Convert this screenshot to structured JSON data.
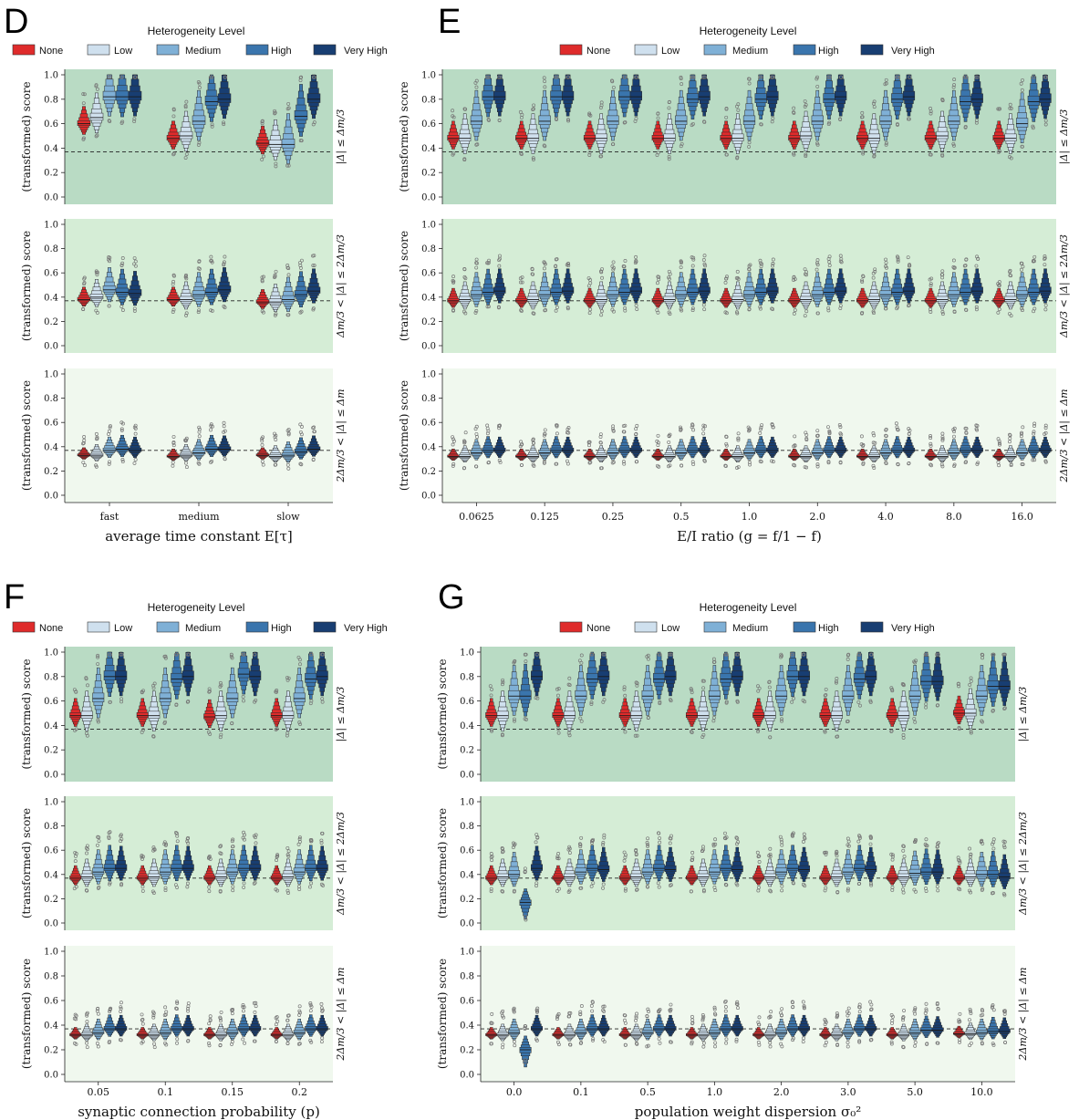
{
  "figure": {
    "legend_title": "Heterogeneity Level",
    "levels": [
      "None",
      "Low",
      "Medium",
      "High",
      "Very High"
    ],
    "colors": {
      "None": "#df2b2b",
      "Low": "#cfe0ee",
      "Medium": "#7fb0d6",
      "High": "#3a75ad",
      "Very High": "#183e72"
    },
    "y_label": "(transformed) score",
    "row_labels": [
      "|Δ| ≤ Δm/3",
      "Δm/3 < |Δ| ≤ 2Δm/3",
      "2Δm/3 < |Δ| ≤ Δm"
    ],
    "row_backgrounds": [
      "#b9dbc4",
      "#d5edd6",
      "#f0f8ee"
    ],
    "y_ticks": [
      "0.0",
      "0.2",
      "0.4",
      "0.6",
      "0.8",
      "1.0"
    ],
    "ylim": [
      0.0,
      1.0
    ],
    "reference_line": 0.37
  },
  "chart_data": [
    {
      "panel": "D",
      "type": "boxen",
      "xlabel": "average time constant E[τ]",
      "categories": [
        "fast",
        "medium",
        "slow"
      ],
      "medians": [
        [
          [
            0.6,
            0.65,
            0.82,
            0.82,
            0.82
          ],
          [
            0.48,
            0.5,
            0.62,
            0.78,
            0.8
          ],
          [
            0.44,
            0.43,
            0.43,
            0.66,
            0.8
          ]
        ],
        [
          [
            0.38,
            0.4,
            0.46,
            0.44,
            0.43
          ],
          [
            0.38,
            0.38,
            0.42,
            0.44,
            0.46
          ],
          [
            0.36,
            0.36,
            0.38,
            0.42,
            0.45
          ]
        ],
        [
          [
            0.33,
            0.33,
            0.37,
            0.38,
            0.37
          ],
          [
            0.32,
            0.33,
            0.35,
            0.38,
            0.38
          ],
          [
            0.33,
            0.32,
            0.33,
            0.36,
            0.38
          ]
        ]
      ]
    },
    {
      "panel": "E",
      "type": "boxen",
      "xlabel": "E/I ratio (g = f/1 − f)",
      "categories": [
        "0.0625",
        "0.125",
        "0.25",
        "0.5",
        "1.0",
        "2.0",
        "4.0",
        "8.0",
        "16.0"
      ],
      "medians": [
        [
          [
            0.48,
            0.48,
            0.62,
            0.82,
            0.82
          ],
          [
            0.48,
            0.48,
            0.62,
            0.82,
            0.82
          ],
          [
            0.48,
            0.48,
            0.62,
            0.82,
            0.82
          ],
          [
            0.48,
            0.48,
            0.62,
            0.8,
            0.82
          ],
          [
            0.48,
            0.48,
            0.62,
            0.8,
            0.82
          ],
          [
            0.48,
            0.5,
            0.62,
            0.8,
            0.82
          ],
          [
            0.48,
            0.48,
            0.62,
            0.8,
            0.82
          ],
          [
            0.48,
            0.5,
            0.62,
            0.78,
            0.8
          ],
          [
            0.48,
            0.48,
            0.6,
            0.78,
            0.8
          ]
        ],
        [
          [
            0.37,
            0.38,
            0.42,
            0.44,
            0.45
          ],
          [
            0.37,
            0.38,
            0.42,
            0.44,
            0.45
          ],
          [
            0.37,
            0.38,
            0.42,
            0.44,
            0.45
          ],
          [
            0.37,
            0.38,
            0.42,
            0.44,
            0.45
          ],
          [
            0.37,
            0.38,
            0.42,
            0.44,
            0.45
          ],
          [
            0.37,
            0.38,
            0.42,
            0.44,
            0.45
          ],
          [
            0.37,
            0.38,
            0.42,
            0.44,
            0.45
          ],
          [
            0.37,
            0.38,
            0.42,
            0.44,
            0.45
          ],
          [
            0.37,
            0.38,
            0.42,
            0.44,
            0.45
          ]
        ],
        [
          [
            0.32,
            0.32,
            0.35,
            0.37,
            0.37
          ],
          [
            0.32,
            0.32,
            0.35,
            0.37,
            0.37
          ],
          [
            0.32,
            0.32,
            0.35,
            0.37,
            0.37
          ],
          [
            0.32,
            0.32,
            0.35,
            0.37,
            0.37
          ],
          [
            0.32,
            0.32,
            0.35,
            0.37,
            0.37
          ],
          [
            0.32,
            0.32,
            0.35,
            0.37,
            0.37
          ],
          [
            0.32,
            0.32,
            0.35,
            0.37,
            0.37
          ],
          [
            0.32,
            0.32,
            0.35,
            0.37,
            0.37
          ],
          [
            0.32,
            0.32,
            0.35,
            0.37,
            0.37
          ]
        ]
      ]
    },
    {
      "panel": "F",
      "type": "boxen",
      "xlabel": "synaptic connection probability (p)",
      "categories": [
        "0.05",
        "0.1",
        "0.15",
        "0.2"
      ],
      "medians": [
        [
          [
            0.48,
            0.48,
            0.62,
            0.8,
            0.8
          ],
          [
            0.48,
            0.48,
            0.62,
            0.78,
            0.8
          ],
          [
            0.47,
            0.48,
            0.62,
            0.82,
            0.8
          ],
          [
            0.48,
            0.48,
            0.62,
            0.78,
            0.8
          ]
        ],
        [
          [
            0.37,
            0.38,
            0.42,
            0.45,
            0.45
          ],
          [
            0.37,
            0.38,
            0.42,
            0.45,
            0.45
          ],
          [
            0.37,
            0.38,
            0.42,
            0.45,
            0.45
          ],
          [
            0.37,
            0.38,
            0.42,
            0.45,
            0.45
          ]
        ],
        [
          [
            0.32,
            0.32,
            0.34,
            0.37,
            0.37
          ],
          [
            0.32,
            0.32,
            0.34,
            0.37,
            0.37
          ],
          [
            0.32,
            0.32,
            0.34,
            0.37,
            0.37
          ],
          [
            0.32,
            0.32,
            0.34,
            0.37,
            0.37
          ]
        ]
      ]
    },
    {
      "panel": "G",
      "type": "boxen",
      "xlabel": "population weight dispersion σ₀²",
      "categories": [
        "0.0",
        "0.1",
        "0.5",
        "1.0",
        "2.0",
        "3.0",
        "5.0",
        "10.0"
      ],
      "medians": [
        [
          [
            0.48,
            0.48,
            0.64,
            0.64,
            0.8
          ],
          [
            0.48,
            0.48,
            0.64,
            0.78,
            0.8
          ],
          [
            0.48,
            0.48,
            0.64,
            0.78,
            0.8
          ],
          [
            0.48,
            0.48,
            0.64,
            0.78,
            0.8
          ],
          [
            0.48,
            0.48,
            0.64,
            0.8,
            0.8
          ],
          [
            0.48,
            0.48,
            0.64,
            0.78,
            0.8
          ],
          [
            0.48,
            0.48,
            0.64,
            0.76,
            0.76
          ],
          [
            0.5,
            0.5,
            0.64,
            0.72,
            0.72
          ]
        ],
        [
          [
            0.37,
            0.38,
            0.4,
            0.17,
            0.45
          ],
          [
            0.37,
            0.38,
            0.42,
            0.45,
            0.44
          ],
          [
            0.37,
            0.38,
            0.42,
            0.45,
            0.44
          ],
          [
            0.37,
            0.38,
            0.42,
            0.45,
            0.44
          ],
          [
            0.37,
            0.38,
            0.42,
            0.45,
            0.44
          ],
          [
            0.37,
            0.38,
            0.42,
            0.45,
            0.44
          ],
          [
            0.37,
            0.38,
            0.41,
            0.42,
            0.42
          ],
          [
            0.37,
            0.38,
            0.4,
            0.4,
            0.38
          ]
        ],
        [
          [
            0.32,
            0.32,
            0.34,
            0.2,
            0.37
          ],
          [
            0.32,
            0.32,
            0.34,
            0.37,
            0.37
          ],
          [
            0.32,
            0.32,
            0.34,
            0.37,
            0.37
          ],
          [
            0.32,
            0.32,
            0.34,
            0.37,
            0.37
          ],
          [
            0.32,
            0.32,
            0.34,
            0.37,
            0.37
          ],
          [
            0.32,
            0.32,
            0.34,
            0.37,
            0.37
          ],
          [
            0.32,
            0.32,
            0.34,
            0.36,
            0.36
          ],
          [
            0.33,
            0.33,
            0.34,
            0.35,
            0.35
          ]
        ]
      ]
    }
  ]
}
